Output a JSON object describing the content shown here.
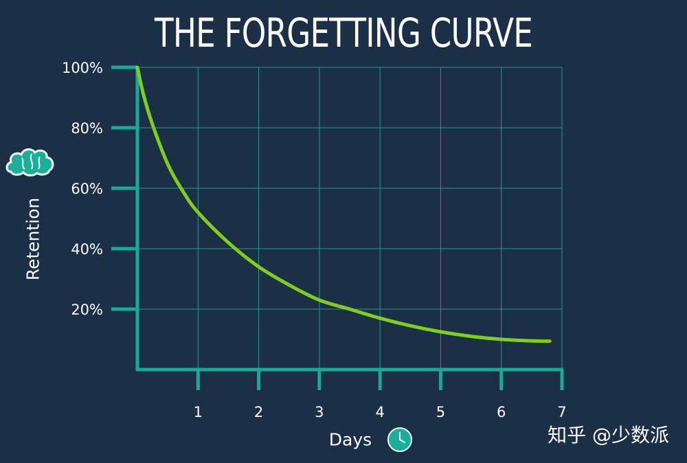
{
  "watermark": "知乎 @少数派",
  "colors": {
    "background": "#1b2f47",
    "axis": "#1aa898",
    "grid": "#1a9f93",
    "curve": "#7fcd1c",
    "text": "#ffffff",
    "icon_fill": "#1aaf9a"
  },
  "icons": {
    "ylabel_icon": "brain-icon",
    "xlabel_icon": "clock-icon"
  },
  "chart_data": {
    "type": "line",
    "title": "THE FORGETTING CURVE",
    "xlabel": "Days",
    "ylabel": "Retention",
    "xlim": [
      0,
      7
    ],
    "ylim": [
      0,
      100
    ],
    "x_ticks": [
      1,
      2,
      3,
      4,
      5,
      6,
      7
    ],
    "y_ticks": [
      20,
      40,
      60,
      80,
      100
    ],
    "y_tick_labels": [
      "20%",
      "40%",
      "60%",
      "80%",
      "100%"
    ],
    "grid": true,
    "series": [
      {
        "x": [
          0,
          0.1,
          0.25,
          0.5,
          0.75,
          1,
          1.5,
          2,
          2.5,
          3,
          3.5,
          4,
          4.5,
          5,
          5.5,
          6,
          6.5,
          6.8
        ],
        "values": [
          100,
          91,
          81,
          68,
          59,
          52,
          42,
          34,
          28,
          23,
          20,
          17,
          14.5,
          12.5,
          11,
          10,
          9.5,
          9.4
        ]
      }
    ]
  }
}
